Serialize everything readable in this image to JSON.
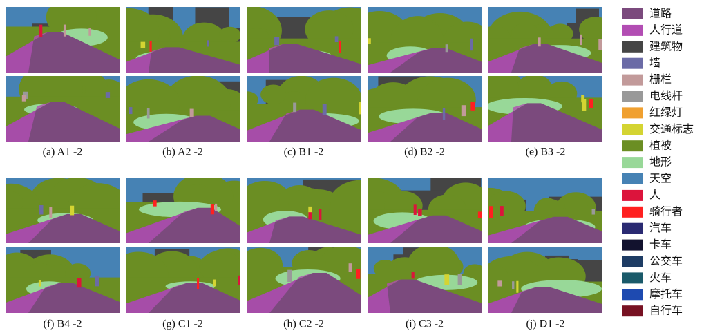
{
  "captions": [
    "(a) A1 -2",
    "(b) A2 -2",
    "(c) B1 -2",
    "(d) B2 -2",
    "(e) B3 -2",
    "(f) B4 -2",
    "(g) C1 -2",
    "(h) C2 -2",
    "(i) C3 -2",
    "(j) D1 -2"
  ],
  "legend": [
    {
      "label": "道路",
      "color": "#7b4a7d"
    },
    {
      "label": "人行道",
      "color": "#b24db3"
    },
    {
      "label": "建筑物",
      "color": "#454545"
    },
    {
      "label": "墙",
      "color": "#6b6ba6"
    },
    {
      "label": "栅栏",
      "color": "#c29a9a"
    },
    {
      "label": "电线杆",
      "color": "#999999"
    },
    {
      "label": "红绿灯",
      "color": "#f0a030"
    },
    {
      "label": "交通标志",
      "color": "#d4d432"
    },
    {
      "label": "植被",
      "color": "#6b8e23"
    },
    {
      "label": "地形",
      "color": "#98d898"
    },
    {
      "label": "天空",
      "color": "#4682b4"
    },
    {
      "label": "人",
      "color": "#dc143c"
    },
    {
      "label": "骑行者",
      "color": "#ff2020"
    },
    {
      "label": "汽车",
      "color": "#2a2a72"
    },
    {
      "label": "卡车",
      "color": "#12122e"
    },
    {
      "label": "公交车",
      "color": "#1e3c64"
    },
    {
      "label": "火车",
      "color": "#1a5a6a"
    },
    {
      "label": "摩托车",
      "color": "#1e4ab0"
    },
    {
      "label": "自行车",
      "color": "#771122"
    }
  ]
}
